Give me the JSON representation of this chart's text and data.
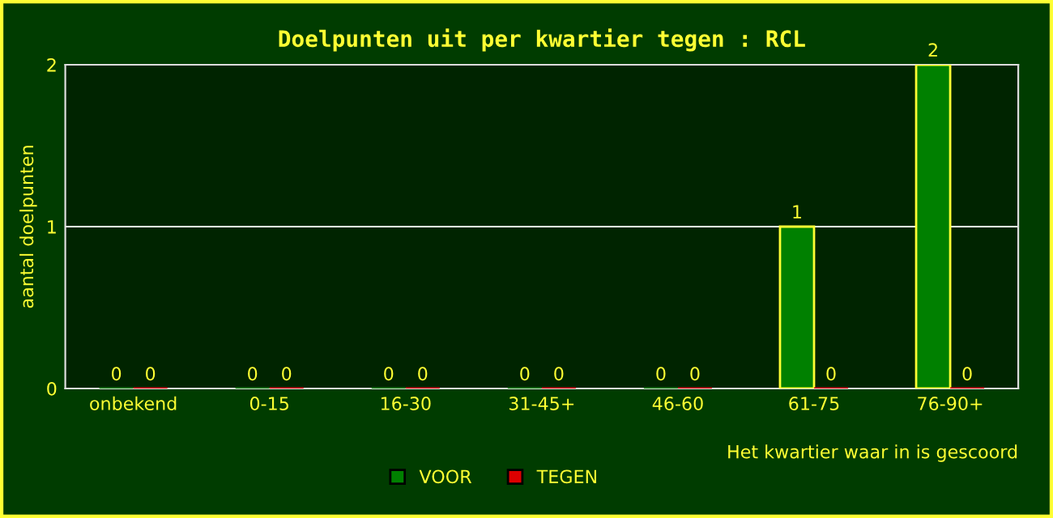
{
  "chart_data": {
    "type": "bar",
    "title": "Doelpunten uit per kwartier tegen : RCL",
    "ylabel": "aantal doelpunten",
    "xlabel": "Het kwartier waar in is gescoord",
    "categories": [
      "onbekend",
      "0-15",
      "16-30",
      "31-45+",
      "46-60",
      "61-75",
      "76-90+"
    ],
    "series": [
      {
        "name": "VOOR",
        "color": "#008000",
        "values": [
          0,
          0,
          0,
          0,
          0,
          1,
          2
        ]
      },
      {
        "name": "TEGEN",
        "color": "#dd0000",
        "values": [
          0,
          0,
          0,
          0,
          0,
          0,
          0
        ]
      }
    ],
    "ylim": [
      0,
      2
    ],
    "yticks": [
      0,
      1,
      2
    ],
    "grid": "y",
    "legend": "bottom",
    "data_labels": true
  }
}
